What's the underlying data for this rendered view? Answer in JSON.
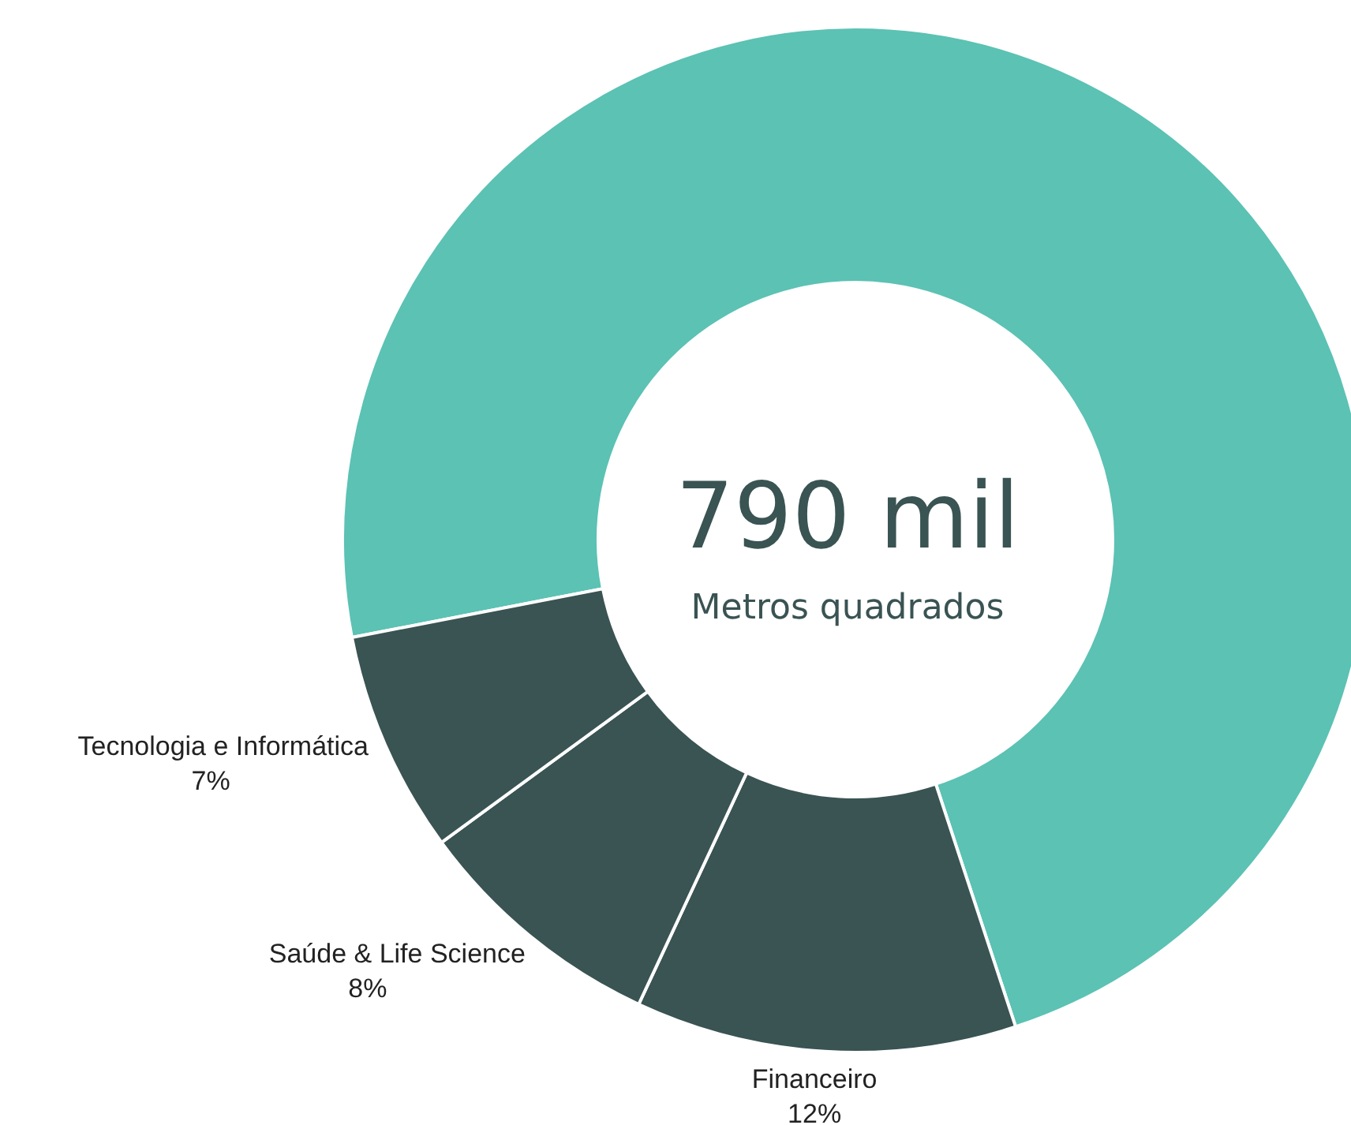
{
  "chart_data": {
    "type": "donut",
    "categories": [
      null,
      "Financeiro",
      "Saúde & Life Science",
      "Tecnologia e Informática"
    ],
    "values": [
      73,
      12,
      8,
      7
    ],
    "colors": [
      "#5bc2b4",
      "#3a5353",
      "#3a5353",
      "#3a5353"
    ],
    "value_labels": [
      null,
      "12%",
      "8%",
      "7%"
    ],
    "annotations": [
      "790 mil",
      "Metros quadrados"
    ],
    "legend": false
  }
}
